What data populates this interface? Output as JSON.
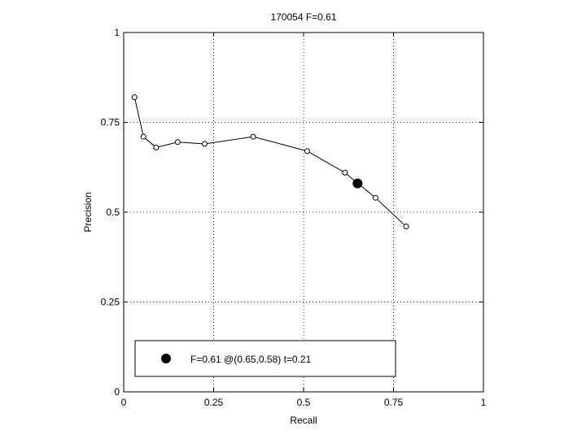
{
  "chart_data": {
    "type": "line",
    "title": "170054 F=0.61",
    "xlabel": "Recall",
    "ylabel": "Precision",
    "xlim": [
      0,
      1
    ],
    "ylim": [
      0,
      1
    ],
    "xticks": [
      0,
      0.25,
      0.5,
      0.75,
      1
    ],
    "yticks": [
      0,
      0.25,
      0.5,
      0.75,
      1
    ],
    "xtick_labels": [
      "0",
      "0.25",
      "0.5",
      "0.75",
      "1"
    ],
    "ytick_labels": [
      "0",
      "0.25",
      "0.5",
      "0.75",
      "1"
    ],
    "grid": true,
    "legend_position": "bottom-left",
    "series": [
      {
        "x": [
          0.03,
          0.055,
          0.09,
          0.15,
          0.225,
          0.36,
          0.51,
          0.615,
          0.7,
          0.785
        ],
        "y": [
          0.82,
          0.71,
          0.68,
          0.695,
          0.69,
          0.71,
          0.67,
          0.61,
          0.54,
          0.46
        ],
        "marker": "open-circle",
        "color": "#000000"
      }
    ],
    "best_point": {
      "x": 0.65,
      "y": 0.58,
      "color": "#000000"
    },
    "legend": {
      "label": "F=0.61 @(0.65,0.58) t=0.21",
      "marker": "filled-circle"
    }
  }
}
